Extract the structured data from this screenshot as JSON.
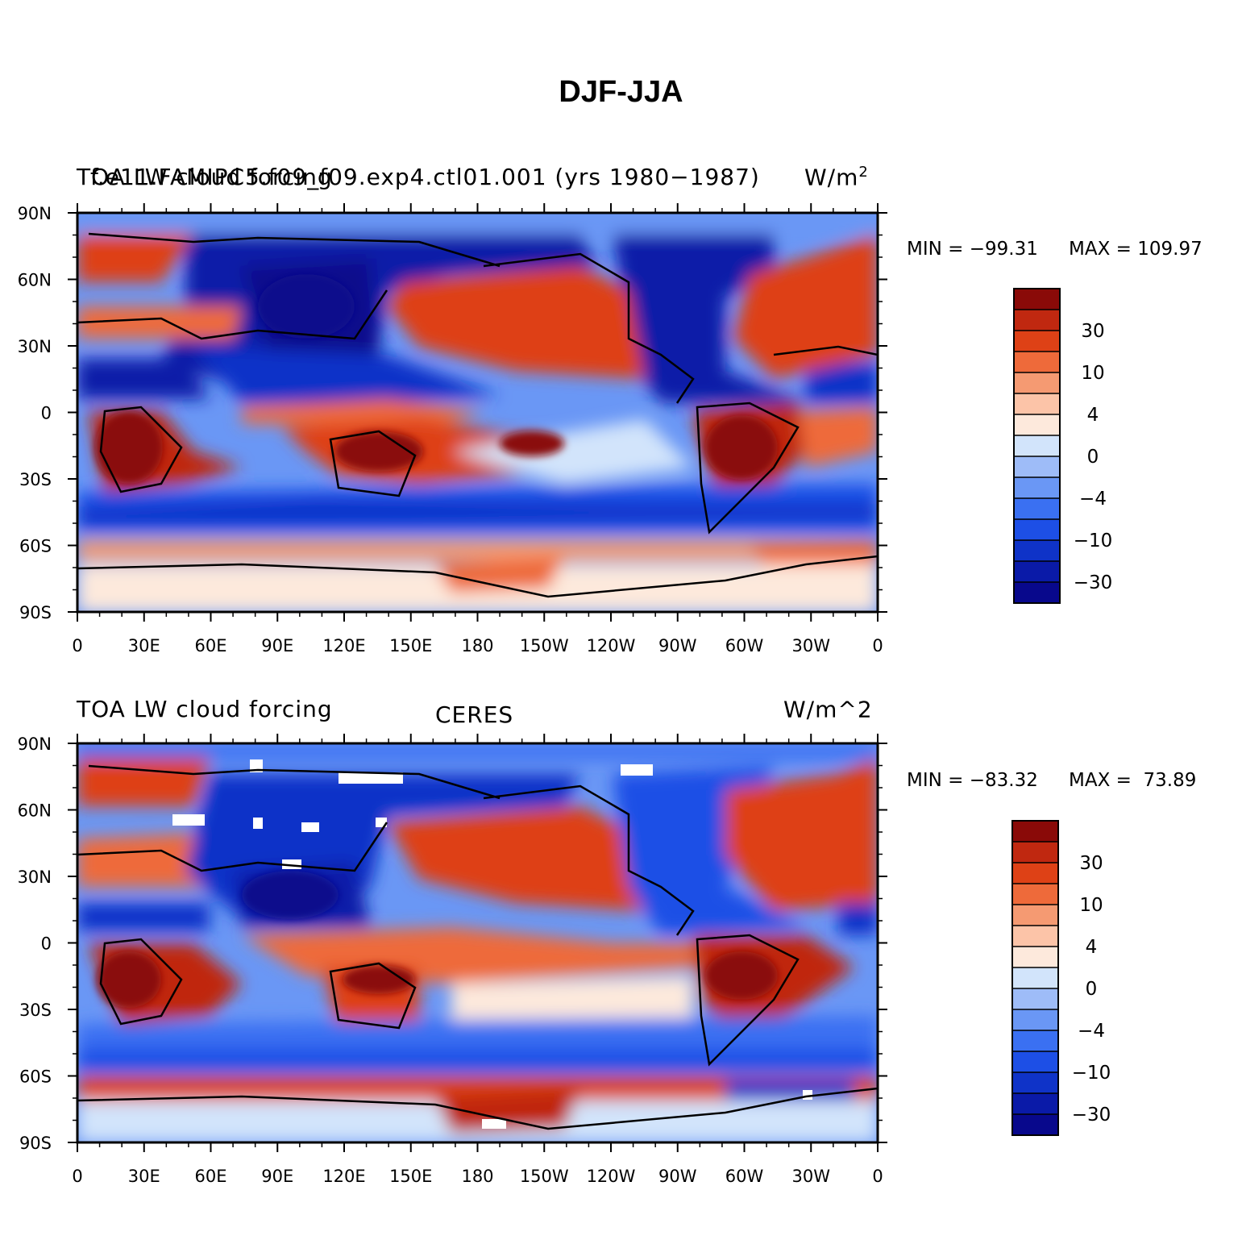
{
  "title": "DJF-JJA",
  "colors": {
    "levels": [
      "#08088c",
      "#0a1aa8",
      "#0f33c8",
      "#1d4fe6",
      "#3a70f2",
      "#6a97f5",
      "#9ebcf8",
      "#d2e4fb",
      "#fde9dc",
      "#fcc4a8",
      "#f59a72",
      "#ee6a3a",
      "#de4116",
      "#c02810",
      "#8a0a08"
    ],
    "land_outline": "#000000"
  },
  "colorbar": {
    "labels": [
      "30",
      "10",
      "4",
      "0",
      "−4",
      "−10",
      "−30"
    ]
  },
  "axes": {
    "lat_labels": [
      "90N",
      "60N",
      "30N",
      "0",
      "30S",
      "60S",
      "90S"
    ],
    "lon_labels": [
      "0",
      "30E",
      "60E",
      "90E",
      "120E",
      "150E",
      "180",
      "150W",
      "120W",
      "90W",
      "60W",
      "30W",
      "0"
    ]
  },
  "panels": [
    {
      "id": "model",
      "left_title": "TOA LW cloud forcing",
      "center_title": "f.e11.FAMIPC5.f09_f09.exp4.ctl01.001 (yrs 1980−1987)",
      "units": "W/m",
      "units_sup": "2",
      "min_label": "MIN = −99.31",
      "max_label": "MAX = 109.97"
    },
    {
      "id": "obs",
      "left_title": "TOA LW cloud forcing",
      "center_title": "CERES",
      "units": "W/m^2",
      "units_sup": "",
      "min_label": "MIN = −83.32",
      "max_label": "MAX =  73.89"
    }
  ]
}
